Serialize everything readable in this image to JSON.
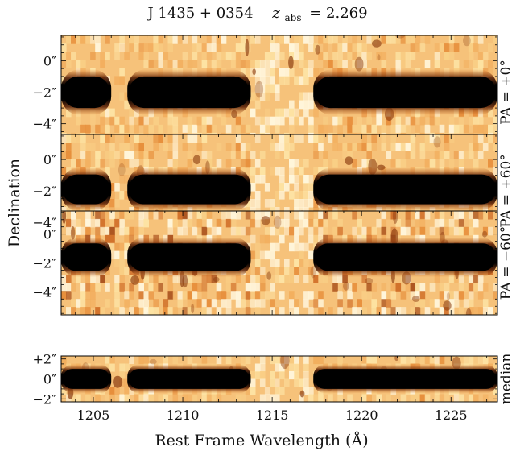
{
  "chart_data": {
    "type": "heatmap",
    "title": "J 1435 + 0354    z_abs = 2.269",
    "title_parts": {
      "object": "J 1435 + 0354",
      "z_symbol": "z",
      "z_sub": "abs",
      "z_value": "= 2.269"
    },
    "xlabel": "Rest Frame Wavelength    (Å)",
    "ylabel": "Declination",
    "xlim": [
      1203.2,
      1227.6
    ],
    "x_ticks": [
      1205,
      1210,
      1215,
      1220,
      1225
    ],
    "x_tick_labels": [
      "1205",
      "1210",
      "1215",
      "1220",
      "1225"
    ],
    "colormap": [
      "#ffffff",
      "#fdf0c0",
      "#f9c87a",
      "#ef9a3e",
      "#d2691e",
      "#8a3a0e",
      "#2a1206",
      "#000000"
    ],
    "panels": [
      {
        "label": "PA = +0°",
        "ylim": [
          -5.6,
          1.6
        ],
        "y_ticks": [
          0,
          -2,
          -4
        ],
        "y_tick_labels": [
          "0″",
          "−2″",
          "−4″"
        ],
        "trace_center": -2.0,
        "trace_halfwidth": 1.0,
        "trace_segments": [
          [
            1203.2,
            1206.0
          ],
          [
            1206.9,
            1213.8
          ],
          [
            1217.3,
            1227.6
          ]
        ],
        "noise_level": 0.35
      },
      {
        "label": "PA = +60°",
        "ylim": [
          -5.6,
          1.6
        ],
        "y_ticks": [
          0,
          -2,
          -4
        ],
        "y_tick_labels": [
          "0″",
          "−2″",
          "−4″"
        ],
        "trace_center": -1.9,
        "trace_halfwidth": 0.95,
        "trace_segments": [
          [
            1203.2,
            1206.0
          ],
          [
            1206.9,
            1213.8
          ],
          [
            1217.3,
            1227.6
          ]
        ],
        "noise_level": 0.4
      },
      {
        "label": "PA = −60°",
        "ylim": [
          -5.6,
          1.6
        ],
        "y_ticks": [
          0,
          -2,
          -4
        ],
        "y_tick_labels": [
          "0″",
          "−2″",
          "−4″"
        ],
        "trace_center": -1.6,
        "trace_halfwidth": 0.95,
        "trace_segments": [
          [
            1203.2,
            1206.0
          ],
          [
            1206.9,
            1213.8
          ],
          [
            1217.3,
            1227.6
          ]
        ],
        "noise_level": 0.75
      },
      {
        "label": "median",
        "ylim": [
          -2.3,
          2.3
        ],
        "y_ticks": [
          2,
          0,
          -2
        ],
        "y_tick_labels": [
          "+2″",
          "0″",
          "−2″"
        ],
        "trace_center": 0.0,
        "trace_halfwidth": 1.0,
        "trace_segments": [
          [
            1203.2,
            1206.0
          ],
          [
            1206.9,
            1213.8
          ],
          [
            1217.3,
            1227.6
          ]
        ],
        "noise_level": 0.3
      }
    ]
  }
}
